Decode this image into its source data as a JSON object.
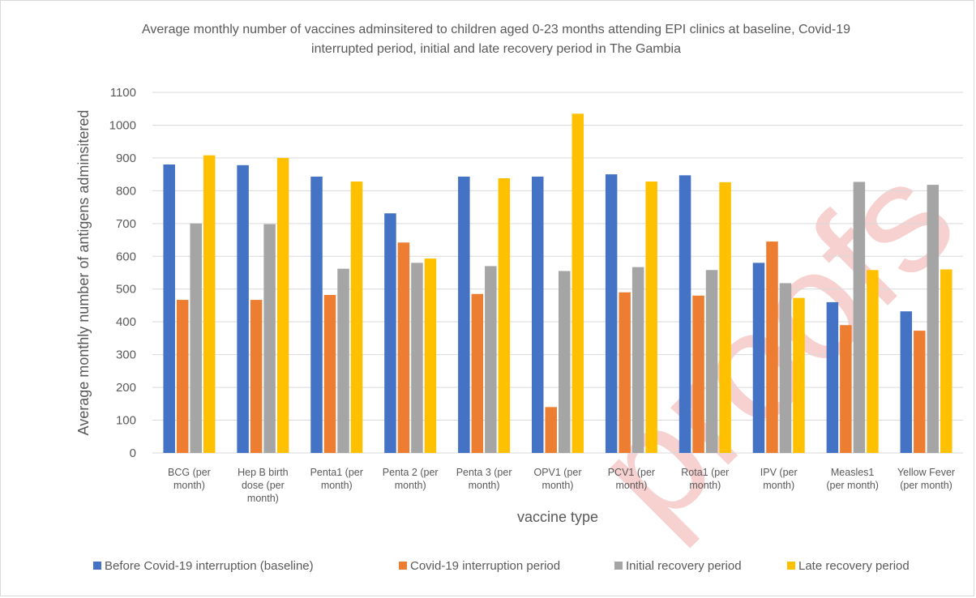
{
  "chart_data": {
    "type": "bar",
    "title_lines": [
      "Average monthly number of vaccines adminsitered to children aged 0-23 months attending EPI clinics at baseline, Covid-19",
      "interrupted period, initial and late recovery period in The Gambia"
    ],
    "xlabel": "vaccine type",
    "ylabel": "Average monthly number of antigens adminsitered",
    "ylim": [
      0,
      1100
    ],
    "yticks": [
      0,
      100,
      200,
      300,
      400,
      500,
      600,
      700,
      800,
      900,
      1000,
      1100
    ],
    "grid": true,
    "legend_position": "bottom",
    "categories": [
      [
        "BCG (per",
        "month)"
      ],
      [
        "Hep B birth",
        "dose (per",
        "month)"
      ],
      [
        "Penta1 (per",
        "month)"
      ],
      [
        "Penta 2 (per",
        "month)"
      ],
      [
        "Penta 3 (per",
        "month)"
      ],
      [
        "OPV1 (per",
        "month)"
      ],
      [
        "PCV1 (per",
        "month)"
      ],
      [
        "Rota1 (per",
        "month)"
      ],
      [
        "IPV (per",
        "month)"
      ],
      [
        "Measles1",
        "(per month)"
      ],
      [
        "Yellow Fever",
        "(per month)"
      ]
    ],
    "series": [
      {
        "name": "Before Covid-19 interruption (baseline)",
        "color": "#4472c4",
        "values": [
          880,
          878,
          843,
          731,
          843,
          843,
          850,
          847,
          580,
          460,
          432
        ]
      },
      {
        "name": "Covid-19 interruption period",
        "color": "#ed7d31",
        "values": [
          467,
          467,
          482,
          642,
          485,
          140,
          490,
          480,
          645,
          390,
          373
        ]
      },
      {
        "name": "Initial recovery period",
        "color": "#a5a5a5",
        "values": [
          700,
          698,
          562,
          580,
          570,
          555,
          567,
          558,
          518,
          827,
          818
        ]
      },
      {
        "name": "Late recovery period",
        "color": "#ffc000",
        "values": [
          908,
          900,
          828,
          593,
          838,
          1035,
          828,
          826,
          473,
          558,
          560
        ]
      }
    ]
  },
  "watermark": "proofs"
}
